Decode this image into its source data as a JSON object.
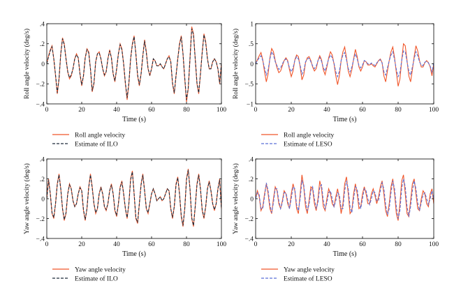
{
  "figure": {
    "colors": {
      "actual": "#f0562a",
      "ilo": "#1f2a3a",
      "leso": "#5b6fd6",
      "axis": "#000000"
    }
  },
  "chart_data": [
    {
      "type": "line",
      "id": "tl",
      "xlabel": "Time (s)",
      "ylabel": "Roll angle velocity (deg/s)",
      "xlim": [
        0,
        100
      ],
      "ylim": [
        -0.4,
        0.4
      ],
      "xticks": [
        0,
        20,
        40,
        60,
        80,
        100
      ],
      "yticks": [
        -0.4,
        -0.2,
        0,
        0.2,
        0.4
      ],
      "x_step": 1,
      "series": [
        {
          "name": "Roll angle velocity",
          "style": "solid",
          "color": "#f0562a",
          "values": [
            0,
            0.08,
            0.14,
            0.18,
            0.05,
            -0.12,
            -0.3,
            -0.15,
            0.1,
            0.26,
            0.2,
            0.05,
            -0.08,
            -0.15,
            -0.12,
            -0.05,
            0.05,
            0.1,
            0.06,
            -0.1,
            -0.22,
            -0.12,
            0.06,
            0.15,
            0.12,
            -0.05,
            -0.28,
            -0.2,
            0.02,
            0.1,
            0.12,
            0.05,
            -0.05,
            -0.12,
            -0.08,
            0.05,
            0.14,
            0.06,
            -0.1,
            -0.18,
            -0.05,
            0.1,
            0.2,
            0.15,
            0.0,
            -0.2,
            -0.36,
            -0.2,
            0.05,
            0.2,
            0.28,
            0.1,
            -0.12,
            -0.22,
            -0.1,
            0.08,
            0.24,
            0.12,
            -0.05,
            -0.12,
            -0.05,
            0.05,
            0.03,
            -0.02,
            -0.02,
            0.0,
            -0.03,
            -0.05,
            0.0,
            0.05,
            0.08,
            0.02,
            -0.2,
            -0.3,
            -0.12,
            0.05,
            0.2,
            0.28,
            0.1,
            -0.15,
            -0.38,
            -0.25,
            0.05,
            0.37,
            0.3,
            0.05,
            -0.2,
            -0.3,
            -0.1,
            0.12,
            0.3,
            0.22,
            0.05,
            -0.05,
            -0.05,
            0.02,
            0.05,
            0.02,
            -0.05,
            -0.2,
            0.0
          ]
        },
        {
          "name": "Estimate of ILO",
          "style": "dashed",
          "color": "#1f2a3a",
          "values": [
            0,
            0.07,
            0.13,
            0.17,
            0.05,
            -0.11,
            -0.29,
            -0.15,
            0.1,
            0.25,
            0.19,
            0.05,
            -0.08,
            -0.14,
            -0.11,
            -0.05,
            0.05,
            0.09,
            0.06,
            -0.1,
            -0.21,
            -0.12,
            0.06,
            0.14,
            0.11,
            -0.05,
            -0.27,
            -0.19,
            0.02,
            0.1,
            0.11,
            0.05,
            -0.05,
            -0.11,
            -0.08,
            0.05,
            0.13,
            0.06,
            -0.1,
            -0.17,
            -0.05,
            0.1,
            0.19,
            0.14,
            0.0,
            -0.19,
            -0.34,
            -0.19,
            0.05,
            0.19,
            0.27,
            0.1,
            -0.11,
            -0.21,
            -0.1,
            0.08,
            0.23,
            0.11,
            -0.05,
            -0.11,
            -0.05,
            0.05,
            0.03,
            -0.02,
            -0.02,
            0.0,
            -0.03,
            -0.05,
            0.0,
            0.05,
            0.07,
            0.02,
            -0.19,
            -0.29,
            -0.12,
            0.05,
            0.19,
            0.27,
            0.1,
            -0.14,
            -0.36,
            -0.24,
            0.05,
            0.35,
            0.29,
            0.05,
            -0.19,
            -0.29,
            -0.1,
            0.11,
            0.29,
            0.21,
            0.05,
            -0.05,
            -0.05,
            0.02,
            0.05,
            0.02,
            -0.05,
            -0.19,
            0.0
          ]
        }
      ],
      "legend": [
        "Roll angle velocity",
        "Estimate of ILO"
      ],
      "legend_position": "below"
    },
    {
      "type": "line",
      "id": "tr",
      "xlabel": "Time (s)",
      "ylabel": "Roll angle velocity (deg/s)",
      "xlim": [
        0,
        100
      ],
      "ylim": [
        -1,
        1
      ],
      "xticks": [
        0,
        20,
        40,
        60,
        80,
        100
      ],
      "yticks": [
        -1,
        -0.5,
        0,
        0.5,
        1
      ],
      "x_step": 1,
      "series": [
        {
          "name": "Roll angle velocity",
          "style": "solid",
          "color": "#f0562a",
          "values": [
            0,
            0.1,
            0.2,
            0.28,
            0.1,
            -0.2,
            -0.45,
            -0.25,
            0.15,
            0.38,
            0.3,
            0.08,
            -0.1,
            -0.22,
            -0.18,
            -0.05,
            0.08,
            0.15,
            0.08,
            -0.15,
            -0.32,
            -0.18,
            0.1,
            0.22,
            0.18,
            -0.08,
            -0.4,
            -0.28,
            0.03,
            0.15,
            0.18,
            0.08,
            -0.08,
            -0.18,
            -0.12,
            0.08,
            0.2,
            0.1,
            -0.15,
            -0.27,
            -0.08,
            0.15,
            0.3,
            0.22,
            0.0,
            -0.3,
            -0.52,
            -0.3,
            0.08,
            0.3,
            0.42,
            0.15,
            -0.18,
            -0.32,
            -0.15,
            0.12,
            0.36,
            0.18,
            -0.08,
            -0.18,
            -0.08,
            0.08,
            0.05,
            -0.03,
            -0.03,
            0.0,
            -0.05,
            -0.08,
            0.0,
            0.08,
            0.12,
            0.03,
            -0.3,
            -0.45,
            -0.18,
            0.08,
            0.3,
            0.42,
            0.15,
            -0.22,
            -0.56,
            -0.38,
            0.08,
            0.5,
            0.45,
            0.08,
            -0.3,
            -0.45,
            -0.15,
            0.18,
            0.45,
            0.32,
            0.08,
            -0.08,
            -0.08,
            0.03,
            0.08,
            0.03,
            -0.08,
            -0.3,
            0.0
          ]
        },
        {
          "name": "Estimate of LESO",
          "style": "dashed",
          "color": "#5b6fd6",
          "values": [
            0,
            0.08,
            0.15,
            0.2,
            0.08,
            -0.1,
            -0.28,
            -0.15,
            0.12,
            0.3,
            0.22,
            0.05,
            -0.05,
            -0.14,
            -0.1,
            0.0,
            0.08,
            0.12,
            0.05,
            -0.1,
            -0.2,
            -0.1,
            0.08,
            0.18,
            0.12,
            -0.04,
            -0.26,
            -0.18,
            0.05,
            0.12,
            0.14,
            0.05,
            -0.05,
            -0.12,
            -0.06,
            0.08,
            0.16,
            0.06,
            -0.1,
            -0.18,
            -0.03,
            0.12,
            0.22,
            0.15,
            0.02,
            -0.2,
            -0.32,
            -0.18,
            0.08,
            0.22,
            0.28,
            0.1,
            -0.12,
            -0.2,
            -0.08,
            0.1,
            0.25,
            0.12,
            -0.04,
            -0.1,
            -0.03,
            0.08,
            0.05,
            0.0,
            -0.02,
            0.02,
            -0.02,
            -0.04,
            0.02,
            0.08,
            0.1,
            0.02,
            -0.2,
            -0.28,
            -0.1,
            0.08,
            0.22,
            0.3,
            0.1,
            -0.14,
            -0.32,
            -0.22,
            0.08,
            0.32,
            0.3,
            0.05,
            -0.18,
            -0.28,
            -0.08,
            0.12,
            0.3,
            0.2,
            0.05,
            -0.04,
            -0.04,
            0.04,
            0.06,
            0.02,
            -0.06,
            -0.2,
            0.02
          ]
        }
      ],
      "legend": [
        "Roll angle velocity",
        "Estimate of LESO"
      ],
      "legend_position": "below"
    },
    {
      "type": "line",
      "id": "bl",
      "xlabel": "Time (s)",
      "ylabel": "Yaw angle velocity (deg/s)",
      "xlim": [
        0,
        100
      ],
      "ylim": [
        -0.4,
        0.4
      ],
      "xticks": [
        0,
        20,
        40,
        60,
        80,
        100
      ],
      "yticks": [
        -0.4,
        -0.2,
        0,
        0.2,
        0.4
      ],
      "x_step": 1,
      "series": [
        {
          "name": "Yaw angle velocity",
          "style": "solid",
          "color": "#f0562a",
          "values": [
            0,
            0.2,
            0.05,
            -0.15,
            -0.2,
            -0.05,
            0.15,
            0.25,
            0.1,
            -0.1,
            -0.22,
            -0.15,
            0.05,
            0.15,
            0.1,
            -0.02,
            -0.08,
            -0.05,
            0.05,
            0.12,
            0.08,
            -0.12,
            -0.22,
            -0.1,
            0.12,
            0.25,
            0.12,
            -0.05,
            -0.15,
            -0.1,
            0.05,
            0.12,
            0.05,
            -0.08,
            -0.12,
            -0.05,
            0.08,
            0.15,
            0.05,
            -0.12,
            -0.18,
            -0.05,
            0.12,
            0.18,
            0.05,
            -0.1,
            -0.2,
            -0.05,
            0.2,
            0.28,
            0.05,
            -0.2,
            -0.25,
            -0.05,
            0.15,
            0.25,
            0.08,
            -0.1,
            -0.15,
            -0.05,
            0.05,
            0.1,
            0.05,
            -0.02,
            0.0,
            0.02,
            -0.02,
            0.0,
            0.05,
            0.1,
            0.08,
            -0.1,
            -0.2,
            -0.08,
            0.15,
            0.22,
            0.05,
            -0.18,
            -0.28,
            -0.1,
            0.2,
            0.3,
            0.1,
            -0.2,
            -0.28,
            -0.08,
            0.15,
            0.25,
            0.1,
            -0.12,
            -0.2,
            -0.08,
            0.1,
            0.18,
            0.08,
            -0.05,
            -0.12,
            -0.05,
            0.1,
            0.2,
            -0.1
          ]
        },
        {
          "name": "Estimate of ILO",
          "style": "dashed",
          "color": "#1f2a3a",
          "values": [
            0,
            0.19,
            0.05,
            -0.14,
            -0.19,
            -0.05,
            0.14,
            0.24,
            0.1,
            -0.1,
            -0.21,
            -0.14,
            0.05,
            0.14,
            0.1,
            -0.02,
            -0.08,
            -0.05,
            0.05,
            0.11,
            0.08,
            -0.11,
            -0.21,
            -0.1,
            0.11,
            0.24,
            0.11,
            -0.05,
            -0.14,
            -0.1,
            0.05,
            0.11,
            0.05,
            -0.08,
            -0.11,
            -0.05,
            0.08,
            0.14,
            0.05,
            -0.11,
            -0.17,
            -0.05,
            0.11,
            0.17,
            0.05,
            -0.1,
            -0.19,
            -0.05,
            0.19,
            0.27,
            0.05,
            -0.19,
            -0.24,
            -0.05,
            0.14,
            0.24,
            0.08,
            -0.1,
            -0.14,
            -0.05,
            0.05,
            0.1,
            0.05,
            -0.02,
            0.0,
            0.02,
            -0.02,
            0.0,
            0.05,
            0.1,
            0.08,
            -0.1,
            -0.19,
            -0.08,
            0.14,
            0.21,
            0.05,
            -0.17,
            -0.27,
            -0.1,
            0.19,
            0.29,
            0.1,
            -0.19,
            -0.27,
            -0.08,
            0.14,
            0.24,
            0.1,
            -0.11,
            -0.19,
            -0.08,
            0.1,
            0.17,
            0.08,
            -0.05,
            -0.11,
            -0.05,
            0.1,
            0.19,
            -0.1
          ]
        }
      ],
      "legend": [
        "Yaw angle velocity",
        "Estimate of ILO"
      ],
      "legend_position": "below"
    },
    {
      "type": "line",
      "id": "br",
      "xlabel": "Time (s)",
      "ylabel": "Yaw angle velocity (deg/s)",
      "xlim": [
        0,
        100
      ],
      "ylim": [
        -0.4,
        0.4
      ],
      "xticks": [
        0,
        20,
        40,
        60,
        80,
        100
      ],
      "yticks": [
        -0.4,
        -0.2,
        0,
        0.2,
        0.4
      ],
      "x_step": 1,
      "series": [
        {
          "name": "Yaw angle velocity",
          "style": "solid",
          "color": "#f0562a",
          "values": [
            0,
            0.08,
            0.02,
            -0.12,
            -0.08,
            0.05,
            0.15,
            0.05,
            -0.1,
            -0.15,
            0.0,
            0.12,
            0.08,
            -0.05,
            -0.1,
            -0.02,
            0.08,
            0.05,
            -0.05,
            -0.1,
            0.05,
            0.15,
            0.08,
            -0.1,
            -0.15,
            0.05,
            0.24,
            0.12,
            -0.08,
            -0.15,
            -0.02,
            0.12,
            0.1,
            -0.05,
            -0.12,
            0.0,
            0.18,
            0.1,
            -0.08,
            -0.12,
            0.0,
            0.1,
            0.05,
            -0.05,
            -0.08,
            0.02,
            0.1,
            0.0,
            -0.15,
            -0.05,
            0.15,
            0.22,
            0.05,
            -0.15,
            -0.12,
            0.05,
            0.15,
            0.05,
            -0.1,
            -0.08,
            0.05,
            0.12,
            0.05,
            -0.05,
            -0.05,
            0.05,
            0.1,
            0.03,
            -0.05,
            0.02,
            0.12,
            0.18,
            0.05,
            -0.12,
            -0.18,
            -0.05,
            0.12,
            0.2,
            0.05,
            -0.15,
            -0.22,
            -0.05,
            0.18,
            0.24,
            0.05,
            -0.15,
            -0.18,
            -0.02,
            0.15,
            0.2,
            0.05,
            -0.1,
            -0.12,
            0.0,
            0.08,
            0.05,
            -0.05,
            -0.08,
            0.05,
            0.1,
            -0.05
          ]
        },
        {
          "name": "Estimate of LESO",
          "style": "dashed",
          "color": "#5b6fd6",
          "values": [
            0,
            0.06,
            0.04,
            -0.1,
            -0.1,
            0.02,
            0.16,
            0.08,
            -0.06,
            -0.14,
            -0.04,
            0.1,
            0.1,
            -0.02,
            -0.1,
            -0.04,
            0.06,
            0.06,
            -0.02,
            -0.1,
            0.0,
            0.12,
            0.1,
            -0.06,
            -0.12,
            0.0,
            0.18,
            0.14,
            -0.02,
            -0.12,
            -0.06,
            0.08,
            0.12,
            0.0,
            -0.1,
            -0.04,
            0.12,
            0.14,
            -0.02,
            -0.1,
            -0.04,
            0.06,
            0.08,
            0.0,
            -0.08,
            -0.02,
            0.06,
            0.04,
            -0.1,
            -0.1,
            0.08,
            0.18,
            0.1,
            -0.08,
            -0.14,
            0.0,
            0.12,
            0.1,
            -0.04,
            -0.1,
            0.0,
            0.1,
            0.08,
            0.0,
            -0.06,
            0.0,
            0.08,
            0.06,
            -0.02,
            -0.02,
            0.08,
            0.16,
            0.1,
            -0.06,
            -0.16,
            -0.1,
            0.06,
            0.18,
            0.1,
            -0.08,
            -0.2,
            -0.12,
            0.1,
            0.2,
            0.12,
            -0.08,
            -0.18,
            -0.08,
            0.08,
            0.18,
            0.1,
            -0.04,
            -0.12,
            -0.04,
            0.04,
            0.06,
            0.0,
            -0.06,
            0.0,
            0.08,
            0.0
          ]
        }
      ],
      "legend": [
        "Yaw angle velocity",
        "Estimate of LESO"
      ],
      "legend_position": "below"
    }
  ]
}
